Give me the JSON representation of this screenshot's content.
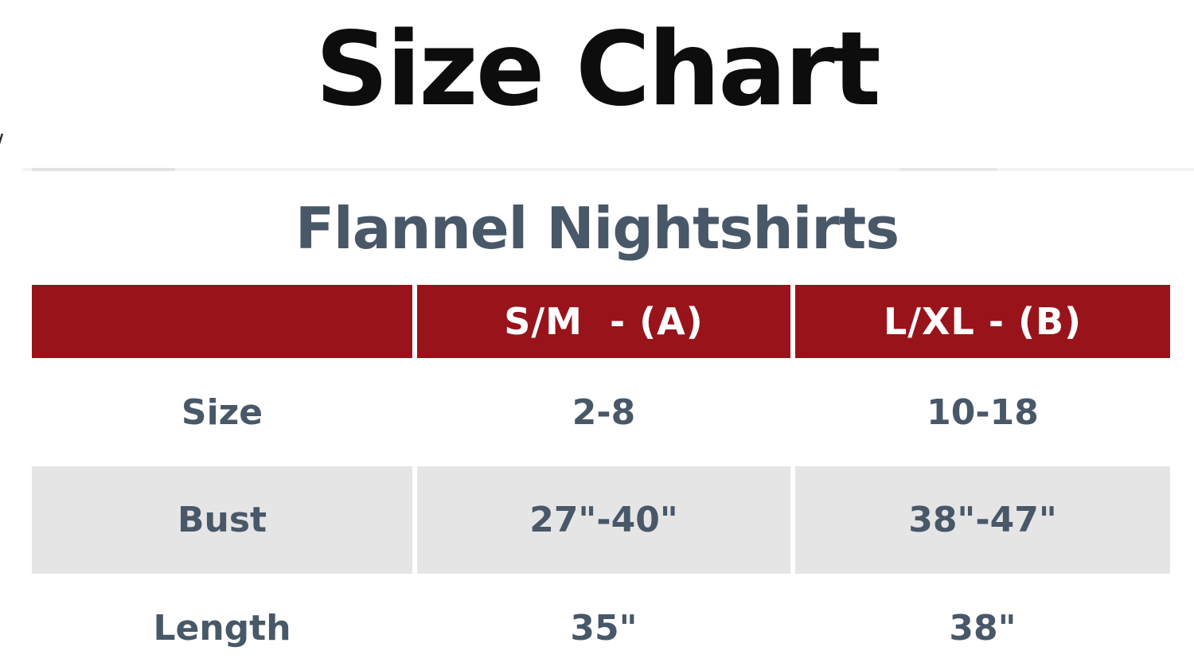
{
  "page": {
    "title": "Size Chart",
    "left_edge_fragment": "/"
  },
  "size_chart": {
    "product": "Flannel Nightshirts",
    "columns": {
      "col1": "",
      "col2": "S/M  - (A)",
      "col3": "L/XL - (B)"
    },
    "rows": [
      {
        "label": "Size",
        "col2": "2-8",
        "col3": "10-18"
      },
      {
        "label": "Bust",
        "col2": "27\"-40\"",
        "col3": "38\"-47\""
      },
      {
        "label": "Length",
        "col2": "35\"",
        "col3": "38\""
      }
    ]
  },
  "colors": {
    "header_bg": "#98141A",
    "header_text": "#FFFFFF",
    "body_text": "#485869",
    "alt_row_bg": "#E6E5E5",
    "title_color": "#0D0D0D"
  }
}
